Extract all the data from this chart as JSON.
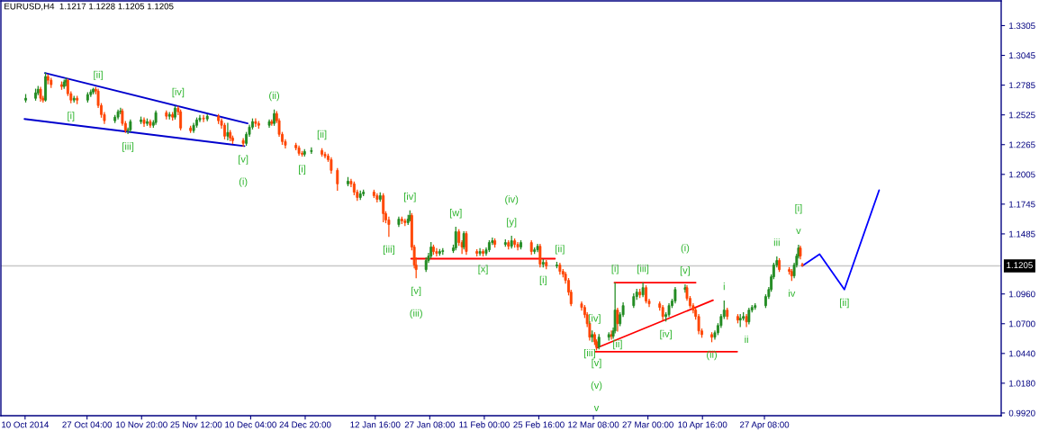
{
  "chart_data": {
    "type": "candlestick",
    "title": "EURUSD,H4  1.1217 1.1228 1.1205 1.1205",
    "x": [
      "2014-10-10T16:00",
      "2014-10-13T08:00",
      "2014-10-14T00:00",
      "2014-10-14T16:00",
      "2014-10-15T08:00",
      "2014-10-16T00:00",
      "2014-10-16T16:00",
      "2014-10-17T12:00",
      "2014-10-20T08:00",
      "2014-10-21T00:00",
      "2014-10-21T12:00",
      "2014-10-22T00:00",
      "2014-10-22T20:00",
      "2014-10-23T16:00",
      "2014-10-24T12:00",
      "2014-10-27T08:00",
      "2014-10-28T04:00",
      "2014-10-28T20:00",
      "2014-10-29T12:00",
      "2014-10-30T04:00",
      "2014-10-31T00:00",
      "2014-10-31T20:00",
      "2014-11-03T16:00",
      "2014-11-04T12:00",
      "2014-11-05T04:00",
      "2014-11-05T16:00",
      "2014-11-06T12:00",
      "2014-11-07T04:00",
      "2014-11-07T20:00",
      "2014-11-10T16:00",
      "2014-11-11T12:00",
      "2014-11-12T08:00",
      "2014-11-13T04:00",
      "2014-11-14T00:00",
      "2014-11-14T16:00",
      "2014-11-17T12:00",
      "2014-11-18T08:00",
      "2014-11-19T04:00",
      "2014-11-19T20:00",
      "2014-11-20T16:00",
      "2014-11-21T08:00",
      "2014-11-24T00:00",
      "2014-11-24T20:00",
      "2014-11-25T16:00",
      "2014-11-26T12:00",
      "2014-11-27T12:00",
      "2014-11-28T12:00",
      "2014-12-01T12:00",
      "2014-12-02T08:00",
      "2014-12-03T04:00",
      "2014-12-04T00:00",
      "2014-12-04T16:00",
      "2014-12-05T08:00",
      "2014-12-08T04:00",
      "2014-12-09T00:00",
      "2014-12-09T20:00",
      "2014-12-10T16:00",
      "2014-12-11T12:00",
      "2014-12-12T08:00",
      "2014-12-15T04:00",
      "2014-12-15T20:00",
      "2014-12-16T12:00",
      "2014-12-17T04:00",
      "2014-12-17T20:00",
      "2014-12-18T16:00",
      "2014-12-19T12:00",
      "2014-12-22T08:00",
      "2014-12-23T04:00",
      "2014-12-24T00:00",
      "2014-12-24T16:00",
      "2014-12-26T12:00",
      "2014-12-29T08:00",
      "2014-12-30T04:00",
      "2014-12-31T00:00",
      "2014-12-31T20:00",
      "2015-01-02T12:00",
      "2015-01-05T08:00",
      "2015-01-06T04:00",
      "2015-01-07T00:00",
      "2015-01-07T20:00",
      "2015-01-08T16:00",
      "2015-01-09T12:00",
      "2015-01-12T08:00",
      "2015-01-13T04:00",
      "2015-01-14T00:00",
      "2015-01-14T20:00",
      "2015-01-15T12:00",
      "2015-01-16T08:00",
      "2015-01-19T00:00",
      "2015-01-19T20:00",
      "2015-01-20T16:00",
      "2015-01-21T12:00",
      "2015-01-22T00:00",
      "2015-01-22T12:00",
      "2015-01-23T04:00",
      "2015-01-23T16:00",
      "2015-01-26T08:00",
      "2015-01-27T00:00",
      "2015-01-27T16:00",
      "2015-01-28T08:00",
      "2015-01-29T04:00",
      "2015-01-30T00:00",
      "2015-01-30T20:00",
      "2015-02-02T16:00",
      "2015-02-03T08:00",
      "2015-02-04T04:00",
      "2015-02-05T00:00",
      "2015-02-05T12:00",
      "2015-02-06T04:00",
      "2015-02-09T00:00",
      "2015-02-09T20:00",
      "2015-02-10T16:00",
      "2015-02-11T12:00",
      "2015-02-12T08:00",
      "2015-02-13T04:00",
      "2015-02-13T20:00",
      "2015-02-16T16:00",
      "2015-02-17T12:00",
      "2015-02-18T08:00",
      "2015-02-19T04:00",
      "2015-02-20T00:00",
      "2015-02-20T20:00",
      "2015-02-23T16:00",
      "2015-02-24T12:00",
      "2015-02-25T08:00",
      "2015-02-26T00:00",
      "2015-02-26T20:00",
      "2015-02-27T16:00",
      "2015-03-02T12:00",
      "2015-03-03T08:00",
      "2015-03-04T04:00",
      "2015-03-04T20:00",
      "2015-03-05T16:00",
      "2015-03-06T08:00",
      "2015-03-09T04:00",
      "2015-03-10T00:00",
      "2015-03-10T16:00",
      "2015-03-11T08:00",
      "2015-03-12T00:00",
      "2015-03-12T16:00",
      "2015-03-13T04:00",
      "2015-03-13T20:00",
      "2015-03-16T12:00",
      "2015-03-17T04:00",
      "2015-03-17T16:00",
      "2015-03-18T04:00",
      "2015-03-18T20:00",
      "2015-03-19T12:00",
      "2015-03-20T08:00",
      "2015-03-23T04:00",
      "2015-03-24T00:00",
      "2015-03-24T20:00",
      "2015-03-25T16:00",
      "2015-03-26T12:00",
      "2015-03-27T08:00",
      "2015-03-30T04:00",
      "2015-03-31T00:00",
      "2015-03-31T20:00",
      "2015-04-01T16:00",
      "2015-04-02T12:00",
      "2015-04-03T08:00",
      "2015-04-06T00:00",
      "2015-04-06T12:00",
      "2015-04-07T08:00",
      "2015-04-08T04:00",
      "2015-04-08T20:00",
      "2015-04-09T16:00",
      "2015-04-10T12:00",
      "2015-04-13T04:00",
      "2015-04-14T00:00",
      "2015-04-14T20:00",
      "2015-04-15T16:00",
      "2015-04-16T12:00",
      "2015-04-17T08:00",
      "2015-04-20T04:00",
      "2015-04-20T20:00",
      "2015-04-21T16:00",
      "2015-04-22T12:00",
      "2015-04-23T04:00",
      "2015-04-24T00:00",
      "2015-04-24T20:00",
      "2015-04-27T16:00",
      "2015-04-28T12:00",
      "2015-04-29T04:00",
      "2015-04-29T20:00",
      "2015-04-30T16:00",
      "2015-05-01T08:00",
      "2015-05-04T00:00",
      "2015-05-04T16:00",
      "2015-05-05T08:00",
      "2015-05-06T00:00",
      "2015-05-06T12:00",
      "2015-05-07T00:00",
      "2015-05-07T12:00"
    ],
    "ohlc": [
      [
        1.2654,
        1.2702,
        1.2638,
        1.267
      ],
      [
        1.267,
        1.2749,
        1.2654,
        1.2717
      ],
      [
        1.2717,
        1.2773,
        1.2702,
        1.2749
      ],
      [
        1.2749,
        1.2765,
        1.2646,
        1.267
      ],
      [
        1.267,
        1.2686,
        1.2638,
        1.2654
      ],
      [
        1.2654,
        1.2891,
        1.2646,
        1.286
      ],
      [
        1.286,
        1.2875,
        1.2796,
        1.2828
      ],
      [
        1.2828,
        1.2844,
        1.2765,
        1.2789
      ],
      [
        1.2789,
        1.2812,
        1.2749,
        1.2773
      ],
      [
        1.2773,
        1.2828,
        1.2757,
        1.2812
      ],
      [
        1.2812,
        1.2844,
        1.2781,
        1.2828
      ],
      [
        1.2828,
        1.2836,
        1.2694,
        1.271
      ],
      [
        1.271,
        1.2725,
        1.2631,
        1.2654
      ],
      [
        1.2654,
        1.2686,
        1.2638,
        1.267
      ],
      [
        1.267,
        1.2686,
        1.2623,
        1.2654
      ],
      [
        1.2654,
        1.2717,
        1.2638,
        1.2702
      ],
      [
        1.2702,
        1.2741,
        1.2686,
        1.2725
      ],
      [
        1.2725,
        1.2757,
        1.271,
        1.2749
      ],
      [
        1.2749,
        1.2765,
        1.271,
        1.2733
      ],
      [
        1.2733,
        1.2749,
        1.2591,
        1.2607
      ],
      [
        1.2607,
        1.2623,
        1.2505,
        1.2528
      ],
      [
        1.2528,
        1.2544,
        1.245,
        1.2474
      ],
      [
        1.2474,
        1.252,
        1.2458,
        1.2505
      ],
      [
        1.2505,
        1.2567,
        1.2489,
        1.2552
      ],
      [
        1.2552,
        1.2583,
        1.2536,
        1.2559
      ],
      [
        1.2559,
        1.2575,
        1.2434,
        1.245
      ],
      [
        1.245,
        1.2466,
        1.2371,
        1.2387
      ],
      [
        1.2387,
        1.241,
        1.2363,
        1.2395
      ],
      [
        1.2395,
        1.2481,
        1.2379,
        1.2466
      ],
      [
        1.2466,
        1.2505,
        1.245,
        1.2481
      ],
      [
        1.2481,
        1.2497,
        1.2426,
        1.245
      ],
      [
        1.245,
        1.2489,
        1.2434,
        1.2466
      ],
      [
        1.2466,
        1.2481,
        1.2418,
        1.2434
      ],
      [
        1.2434,
        1.2474,
        1.2418,
        1.2458
      ],
      [
        1.2458,
        1.2559,
        1.2442,
        1.2544
      ],
      [
        1.2544,
        1.2559,
        1.2489,
        1.2513
      ],
      [
        1.2513,
        1.2544,
        1.2489,
        1.2528
      ],
      [
        1.2528,
        1.2544,
        1.2481,
        1.2505
      ],
      [
        1.2505,
        1.2599,
        1.2489,
        1.2583
      ],
      [
        1.2583,
        1.2599,
        1.2528,
        1.2552
      ],
      [
        1.2552,
        1.2567,
        1.2395,
        1.241
      ],
      [
        1.241,
        1.2426,
        1.2371,
        1.2387
      ],
      [
        1.2387,
        1.245,
        1.2371,
        1.2434
      ],
      [
        1.2434,
        1.2497,
        1.2418,
        1.2481
      ],
      [
        1.2481,
        1.252,
        1.2466,
        1.2497
      ],
      [
        1.2497,
        1.252,
        1.2466,
        1.2489
      ],
      [
        1.2489,
        1.2528,
        1.2474,
        1.2513
      ],
      [
        1.2513,
        1.2528,
        1.245,
        1.2474
      ],
      [
        1.2474,
        1.2489,
        1.241,
        1.2434
      ],
      [
        1.2434,
        1.245,
        1.2316,
        1.2339
      ],
      [
        1.2339,
        1.245,
        1.2308,
        1.2371
      ],
      [
        1.2371,
        1.2387,
        1.23,
        1.2323
      ],
      [
        1.2323,
        1.2339,
        1.2276,
        1.23
      ],
      [
        1.23,
        1.2316,
        1.2252,
        1.2276
      ],
      [
        1.2276,
        1.2371,
        1.226,
        1.2355
      ],
      [
        1.2355,
        1.2434,
        1.2339,
        1.2418
      ],
      [
        1.2418,
        1.2489,
        1.2402,
        1.2466
      ],
      [
        1.2466,
        1.2489,
        1.2426,
        1.245
      ],
      [
        1.245,
        1.2466,
        1.241,
        1.2434
      ],
      [
        1.2434,
        1.2481,
        1.2418,
        1.2466
      ],
      [
        1.2466,
        1.2481,
        1.2434,
        1.245
      ],
      [
        1.245,
        1.2567,
        1.2434,
        1.2536
      ],
      [
        1.2536,
        1.2552,
        1.2458,
        1.2474
      ],
      [
        1.2474,
        1.2489,
        1.2339,
        1.2355
      ],
      [
        1.2355,
        1.2371,
        1.2268,
        1.2292
      ],
      [
        1.2292,
        1.2308,
        1.2237,
        1.226
      ],
      [
        1.226,
        1.2276,
        1.2221,
        1.2237
      ],
      [
        1.2237,
        1.2252,
        1.2173,
        1.2189
      ],
      [
        1.2189,
        1.2205,
        1.2165,
        1.2181
      ],
      [
        1.2181,
        1.2221,
        1.2165,
        1.2205
      ],
      [
        1.2205,
        1.2237,
        1.2189,
        1.2213
      ],
      [
        1.2213,
        1.2229,
        1.2165,
        1.2181
      ],
      [
        1.2181,
        1.2197,
        1.215,
        1.2165
      ],
      [
        1.2165,
        1.2181,
        1.2119,
        1.2134
      ],
      [
        1.2134,
        1.215,
        1.2016,
        1.204
      ],
      [
        1.204,
        1.2055,
        1.1866,
        1.1922
      ],
      [
        1.1922,
        1.1977,
        1.1906,
        1.1945
      ],
      [
        1.1945,
        1.1961,
        1.1898,
        1.1922
      ],
      [
        1.1922,
        1.1937,
        1.1827,
        1.185
      ],
      [
        1.185,
        1.1866,
        1.1779,
        1.1803
      ],
      [
        1.1803,
        1.1858,
        1.1787,
        1.1835
      ],
      [
        1.1835,
        1.1866,
        1.1819,
        1.185
      ],
      [
        1.185,
        1.1866,
        1.1803,
        1.1819
      ],
      [
        1.1819,
        1.1835,
        1.1764,
        1.1787
      ],
      [
        1.1787,
        1.1843,
        1.1771,
        1.1819
      ],
      [
        1.1819,
        1.1835,
        1.1591,
        1.1662
      ],
      [
        1.1662,
        1.1678,
        1.1583,
        1.1607
      ],
      [
        1.1607,
        1.163,
        1.1464,
        1.1567
      ],
      [
        1.1567,
        1.163,
        1.1551,
        1.1614
      ],
      [
        1.1614,
        1.163,
        1.1575,
        1.1599
      ],
      [
        1.1599,
        1.1614,
        1.1559,
        1.1583
      ],
      [
        1.1583,
        1.1646,
        1.1567,
        1.1614
      ],
      [
        1.1614,
        1.1685,
        1.1599,
        1.1646
      ],
      [
        1.1646,
        1.1662,
        1.1346,
        1.137
      ],
      [
        1.137,
        1.1386,
        1.1189,
        1.1213
      ],
      [
        1.1213,
        1.1275,
        1.1102,
        1.1173
      ],
      [
        1.1173,
        1.1275,
        1.1157,
        1.1252
      ],
      [
        1.1252,
        1.1315,
        1.1236,
        1.1291
      ],
      [
        1.1291,
        1.1409,
        1.1276,
        1.137
      ],
      [
        1.137,
        1.1386,
        1.1307,
        1.1331
      ],
      [
        1.1331,
        1.1355,
        1.1292,
        1.1315
      ],
      [
        1.1315,
        1.1347,
        1.1299,
        1.1331
      ],
      [
        1.1331,
        1.1355,
        1.1307,
        1.1338
      ],
      [
        1.1338,
        1.1386,
        1.1323,
        1.1362
      ],
      [
        1.1362,
        1.1543,
        1.1346,
        1.1504
      ],
      [
        1.1504,
        1.152,
        1.1386,
        1.1409
      ],
      [
        1.1409,
        1.1425,
        1.1315,
        1.137
      ],
      [
        1.137,
        1.1504,
        1.1354,
        1.1488
      ],
      [
        1.1488,
        1.1504,
        1.1307,
        1.1331
      ],
      [
        1.1331,
        1.1346,
        1.1292,
        1.1315
      ],
      [
        1.1315,
        1.1355,
        1.1299,
        1.1331
      ],
      [
        1.1331,
        1.1346,
        1.1292,
        1.1315
      ],
      [
        1.1315,
        1.1362,
        1.1299,
        1.1346
      ],
      [
        1.1346,
        1.1425,
        1.1331,
        1.1409
      ],
      [
        1.1409,
        1.1449,
        1.1393,
        1.1425
      ],
      [
        1.1425,
        1.1441,
        1.137,
        1.1393
      ],
      [
        1.1393,
        1.1433,
        1.1377,
        1.1409
      ],
      [
        1.1409,
        1.1425,
        1.1354,
        1.1377
      ],
      [
        1.1377,
        1.1464,
        1.1362,
        1.1425
      ],
      [
        1.1425,
        1.1441,
        1.137,
        1.1393
      ],
      [
        1.1393,
        1.1409,
        1.1346,
        1.137
      ],
      [
        1.137,
        1.1425,
        1.1354,
        1.1409
      ],
      [
        1.1409,
        1.1425,
        1.1307,
        1.1331
      ],
      [
        1.1331,
        1.1362,
        1.1315,
        1.1346
      ],
      [
        1.1346,
        1.1393,
        1.1331,
        1.1377
      ],
      [
        1.1377,
        1.1393,
        1.1197,
        1.122
      ],
      [
        1.122,
        1.126,
        1.1197,
        1.1236
      ],
      [
        1.1236,
        1.1252,
        1.1181,
        1.1205
      ],
      [
        1.1205,
        1.1236,
        1.1189,
        1.1213
      ],
      [
        1.1213,
        1.1228,
        1.1134,
        1.1157
      ],
      [
        1.1157,
        1.1173,
        1.111,
        1.1134
      ],
      [
        1.1134,
        1.1149,
        1.1055,
        1.1078
      ],
      [
        1.1078,
        1.1094,
        1.0952,
        1.0976
      ],
      [
        1.0976,
        1.0991,
        1.0858,
        1.0874
      ],
      [
        1.0874,
        1.089,
        1.0819,
        1.0842
      ],
      [
        1.0842,
        1.0858,
        1.0755,
        1.0779
      ],
      [
        1.0779,
        1.0795,
        1.0676,
        1.07
      ],
      [
        1.07,
        1.0716,
        1.0558,
        1.0582
      ],
      [
        1.0582,
        1.0637,
        1.0543,
        1.0605
      ],
      [
        1.0605,
        1.0621,
        1.0519,
        1.0543
      ],
      [
        1.0543,
        1.0558,
        1.0472,
        1.0496
      ],
      [
        1.0496,
        1.0605,
        1.048,
        1.0582
      ],
      [
        1.0582,
        1.0621,
        1.0558,
        1.0605
      ],
      [
        1.0605,
        1.0637,
        1.0566,
        1.059
      ],
      [
        1.059,
        1.0661,
        1.0574,
        1.0637
      ],
      [
        1.0637,
        1.1055,
        1.0621,
        1.0819
      ],
      [
        1.0819,
        1.0834,
        1.0637,
        1.07
      ],
      [
        1.07,
        1.0795,
        1.0684,
        1.0779
      ],
      [
        1.0779,
        1.0882,
        1.0763,
        1.0858
      ],
      [
        1.0858,
        1.0961,
        1.0842,
        1.0937
      ],
      [
        1.0937,
        1.0999,
        1.0913,
        1.0976
      ],
      [
        1.0976,
        1.0999,
        1.0929,
        1.0952
      ],
      [
        1.0952,
        1.1055,
        1.0937,
        1.1015
      ],
      [
        1.1015,
        1.1031,
        1.0882,
        1.0898
      ],
      [
        1.0898,
        1.0913,
        1.085,
        1.0874
      ],
      [
        1.0874,
        1.089,
        1.0819,
        1.0842
      ],
      [
        1.0842,
        1.0858,
        1.0732,
        1.0763
      ],
      [
        1.0763,
        1.0795,
        1.0724,
        1.0779
      ],
      [
        1.0779,
        1.0874,
        1.0763,
        1.0858
      ],
      [
        1.0858,
        1.0913,
        1.0842,
        1.0898
      ],
      [
        1.0898,
        1.1015,
        1.0882,
        1.0999
      ],
      [
        1.0999,
        1.1039,
        1.0976,
        1.1015
      ],
      [
        1.1015,
        1.1031,
        1.0905,
        1.0921
      ],
      [
        1.0921,
        1.0937,
        1.0842,
        1.0858
      ],
      [
        1.0858,
        1.0874,
        1.0795,
        1.0819
      ],
      [
        1.0819,
        1.0834,
        1.074,
        1.0763
      ],
      [
        1.0763,
        1.0779,
        1.0613,
        1.0637
      ],
      [
        1.0637,
        1.0653,
        1.0582,
        1.0605
      ],
      [
        1.0605,
        1.0621,
        1.0543,
        1.0582
      ],
      [
        1.0582,
        1.0637,
        1.0566,
        1.0621
      ],
      [
        1.0621,
        1.07,
        1.0605,
        1.0684
      ],
      [
        1.0684,
        1.0779,
        1.0668,
        1.0763
      ],
      [
        1.0763,
        1.0898,
        1.0747,
        1.0819
      ],
      [
        1.0819,
        1.0834,
        1.074,
        1.0763
      ],
      [
        1.0763,
        1.0779,
        1.0708,
        1.0732
      ],
      [
        1.0732,
        1.0779,
        1.0676,
        1.0747
      ],
      [
        1.0747,
        1.0795,
        1.0732,
        1.0763
      ],
      [
        1.0763,
        1.0779,
        1.0676,
        1.0716
      ],
      [
        1.0716,
        1.0834,
        1.07,
        1.0819
      ],
      [
        1.0819,
        1.0858,
        1.0803,
        1.0842
      ],
      [
        1.0842,
        1.0874,
        1.0827,
        1.0858
      ],
      [
        1.0858,
        1.0952,
        1.0842,
        1.0937
      ],
      [
        1.0937,
        1.1015,
        1.0921,
        1.0999
      ],
      [
        1.0999,
        1.1126,
        1.0984,
        1.111
      ],
      [
        1.111,
        1.1228,
        1.1094,
        1.1213
      ],
      [
        1.1213,
        1.1283,
        1.1197,
        1.1252
      ],
      [
        1.1252,
        1.1268,
        1.1157,
        1.1173
      ],
      [
        1.1173,
        1.1189,
        1.1134,
        1.1157
      ],
      [
        1.1157,
        1.1173,
        1.1078,
        1.1118
      ],
      [
        1.1118,
        1.1228,
        1.1102,
        1.1213
      ],
      [
        1.1213,
        1.1307,
        1.1197,
        1.1291
      ],
      [
        1.1291,
        1.1386,
        1.1276,
        1.1362
      ],
      [
        1.1362,
        1.1377,
        1.1268,
        1.1291
      ],
      [
        1.1217,
        1.1228,
        1.1205,
        1.1205
      ]
    ],
    "colors": [
      "#228b22",
      "#228b22",
      "#228b22",
      "#ff4500",
      "#ff4500",
      "#228b22",
      "#ff4500",
      "#ff4500",
      "#ff4500",
      "#228b22",
      "#228b22",
      "#ff4500",
      "#ff4500",
      "#228b22",
      "#ff4500",
      "#228b22",
      "#228b22",
      "#228b22",
      "#ff4500",
      "#ff4500",
      "#ff4500",
      "#ff4500",
      "#228b22",
      "#228b22",
      "#228b22",
      "#ff4500",
      "#ff4500",
      "#228b22",
      "#228b22",
      "#228b22",
      "#ff4500",
      "#228b22",
      "#ff4500",
      "#228b22",
      "#228b22",
      "#ff4500",
      "#228b22",
      "#ff4500",
      "#228b22",
      "#ff4500",
      "#ff4500",
      "#ff4500",
      "#228b22",
      "#228b22",
      "#228b22",
      "#ff4500",
      "#228b22",
      "#ff4500",
      "#ff4500",
      "#ff4500",
      "#228b22",
      "#ff4500",
      "#ff4500",
      "#ff4500",
      "#228b22",
      "#228b22",
      "#228b22",
      "#ff4500",
      "#ff4500",
      "#228b22",
      "#ff4500",
      "#228b22",
      "#ff4500",
      "#ff4500",
      "#ff4500",
      "#ff4500",
      "#ff4500",
      "#ff4500",
      "#ff4500",
      "#228b22",
      "#228b22",
      "#ff4500",
      "#ff4500",
      "#ff4500",
      "#ff4500",
      "#ff4500",
      "#228b22",
      "#ff4500",
      "#ff4500",
      "#ff4500",
      "#228b22",
      "#228b22",
      "#ff4500",
      "#ff4500",
      "#228b22",
      "#ff4500",
      "#ff4500",
      "#ff4500",
      "#228b22",
      "#ff4500",
      "#ff4500",
      "#228b22",
      "#228b22",
      "#ff4500",
      "#ff4500",
      "#ff4500",
      "#228b22",
      "#228b22",
      "#228b22",
      "#ff4500",
      "#ff4500",
      "#228b22",
      "#228b22",
      "#228b22",
      "#228b22",
      "#ff4500",
      "#ff4500",
      "#228b22",
      "#ff4500",
      "#ff4500",
      "#228b22",
      "#ff4500",
      "#228b22",
      "#228b22",
      "#228b22",
      "#ff4500",
      "#228b22",
      "#ff4500",
      "#228b22",
      "#ff4500",
      "#ff4500",
      "#228b22",
      "#ff4500",
      "#228b22",
      "#228b22",
      "#ff4500",
      "#228b22",
      "#ff4500",
      "#228b22",
      "#ff4500",
      "#ff4500",
      "#ff4500",
      "#ff4500",
      "#ff4500",
      "#ff4500",
      "#ff4500",
      "#ff4500",
      "#ff4500",
      "#228b22",
      "#ff4500",
      "#ff4500",
      "#228b22",
      "#228b22",
      "#ff4500",
      "#228b22",
      "#228b22",
      "#ff4500",
      "#228b22",
      "#228b22",
      "#228b22",
      "#228b22",
      "#ff4500",
      "#228b22",
      "#ff4500",
      "#ff4500",
      "#ff4500",
      "#ff4500",
      "#228b22",
      "#228b22",
      "#228b22",
      "#228b22",
      "#228b22",
      "#ff4500",
      "#ff4500",
      "#ff4500",
      "#ff4500",
      "#ff4500",
      "#ff4500",
      "#ff4500",
      "#228b22",
      "#228b22",
      "#228b22",
      "#228b22",
      "#ff4500",
      "#ff4500",
      "#228b22",
      "#228b22",
      "#ff4500",
      "#228b22",
      "#228b22",
      "#228b22",
      "#228b22",
      "#228b22",
      "#228b22",
      "#228b22",
      "#228b22",
      "#ff4500",
      "#ff4500",
      "#ff4500",
      "#228b22",
      "#228b22",
      "#228b22",
      "#ff4500",
      "#ff4500"
    ],
    "series": [
      {
        "type": "line",
        "color": "#0000cd",
        "x": [
          "2014-10-15T20:00",
          "2014-12-09T08:00"
        ],
        "values": [
          1.2891,
          1.245
        ]
      },
      {
        "type": "line",
        "color": "#0000cd",
        "x": [
          "2014-10-10T08:00",
          "2014-12-08T12:00"
        ],
        "values": [
          1.2489,
          1.2252
        ]
      },
      {
        "type": "line",
        "color": "#ff0000",
        "x": [
          "2015-01-22T08:00",
          "2015-03-02T00:00"
        ],
        "values": [
          1.1268,
          1.1268
        ]
      },
      {
        "type": "line",
        "color": "#ff0000",
        "x": [
          "2015-03-18T00:00",
          "2015-04-08T20:00"
        ],
        "values": [
          1.1059,
          1.1059
        ]
      },
      {
        "type": "line",
        "color": "#ff0000",
        "x": [
          "2015-03-13T04:00",
          "2015-04-13T12:00"
        ],
        "values": [
          1.0488,
          1.0905
        ]
      },
      {
        "type": "line",
        "color": "#ff0000",
        "x": [
          "2015-03-12T20:00",
          "2015-04-20T00:00"
        ],
        "values": [
          1.0456,
          1.0456
        ]
      },
      {
        "type": "line",
        "color": "#0000ff",
        "x": [
          "2015-05-07T12:00",
          "2015-05-12T04:00",
          "2015-05-18T20:00",
          "2015-05-28T04:00"
        ],
        "values": [
          1.1205,
          1.1307,
          1.0999,
          1.1866
        ]
      }
    ],
    "xlim": [
      "2014-10-04",
      "2015-06-30"
    ],
    "ylim": [
      0.9896,
      1.3521
    ],
    "xticks": [
      {
        "value": "2014-10-10T12:00",
        "label": "10 Oct 2014"
      },
      {
        "value": "2014-10-27T04:00",
        "label": "27 Oct 04:00"
      },
      {
        "value": "2014-11-10T20:00",
        "label": "10 Nov 20:00"
      },
      {
        "value": "2014-11-25T12:00",
        "label": "25 Nov 12:00"
      },
      {
        "value": "2014-12-10T04:00",
        "label": "10 Dec 04:00"
      },
      {
        "value": "2014-12-24T20:00",
        "label": "24 Dec 20:00"
      },
      {
        "value": "2015-01-12T16:00",
        "label": "12 Jan 16:00"
      },
      {
        "value": "2015-01-27T08:00",
        "label": "27 Jan 08:00"
      },
      {
        "value": "2015-02-11T00:00",
        "label": "11 Feb 00:00"
      },
      {
        "value": "2015-02-25T16:00",
        "label": "25 Feb 16:00"
      },
      {
        "value": "2015-03-12T08:00",
        "label": "12 Mar 08:00"
      },
      {
        "value": "2015-03-27T00:00",
        "label": "27 Mar 00:00"
      },
      {
        "value": "2015-04-10T16:00",
        "label": "10 Apr 16:00"
      },
      {
        "value": "2015-04-27T08:00",
        "label": "27 Apr 08:00"
      }
    ],
    "yticks": [
      1.3305,
      1.3045,
      1.2785,
      1.2525,
      1.2265,
      1.2005,
      1.1745,
      1.1485,
      {
        "value": 1.096,
        "label": "1.0960"
      },
      {
        "value": 1.07,
        "label": "1.0700"
      },
      {
        "value": 1.044,
        "label": "1.0440"
      },
      {
        "value": 1.018,
        "label": "1.0180"
      },
      {
        "value": 0.992,
        "label": "0.9920"
      }
    ],
    "ref_lines": [
      {
        "axis": "y",
        "value": 1.1205,
        "label": "1.1205",
        "color": "#c8c8c8"
      }
    ],
    "annotations": [
      {
        "text": "[ii]",
        "x": "2014-10-30T04:00",
        "y": 1.2749
      },
      {
        "text": "[i]",
        "x": "2014-10-22T20:00",
        "y": 1.2631
      },
      {
        "text": "[iv]",
        "x": "2014-11-20T16:00",
        "y": 1.2599
      },
      {
        "text": "[iii]",
        "x": "2014-11-07T04:00",
        "y": 1.2363
      },
      {
        "text": "[v]",
        "x": "2014-12-08T04:00",
        "y": 1.2252
      },
      "(i)",
      {
        "text": "(ii)",
        "x": "2014-12-16T12:00",
        "y": 1.2567
      },
      {
        "text": "[ii]",
        "x": "2014-12-29T08:00",
        "y": 1.2229
      },
      {
        "text": "[i]",
        "x": "2014-12-24T00:00",
        "y": 1.2165
      },
      {
        "text": "[iv]",
        "x": "2015-01-22T00:00",
        "y": 1.1685
      },
      {
        "text": "[iii]",
        "x": "2015-01-16T08:00",
        "y": 1.1464
      },
      {
        "text": "[w]",
        "x": "2015-02-03T08:00",
        "y": 1.1543
      },
      {
        "text": "[y]",
        "x": "2015-02-18T08:00",
        "y": 1.1464
      },
      "(iv)",
      {
        "text": "[x]",
        "x": "2015-02-10T16:00",
        "y": 1.1292
      },
      {
        "text": "[v]",
        "x": "2015-01-23T16:00",
        "y": 1.1102
      },
      "(iii)",
      {
        "text": "[ii]",
        "x": "2015-03-03T08:00",
        "y": 1.1228
      },
      {
        "text": "[i]",
        "x": "2015-02-26T20:00",
        "y": 1.1197
      },
      {
        "text": "[i]",
        "x": "2015-03-18T04:00",
        "y": 1.1055
      },
      {
        "text": "[iii]",
        "x": "2015-03-25T16:00",
        "y": 1.1055
      },
      {
        "text": "[v]",
        "x": "2015-04-06T00:00",
        "y": 1.1039
      },
      "(i)",
      {
        "text": "[iv]",
        "x": "2015-03-12T16:00",
        "y": 1.0621
      },
      {
        "text": "[ii]",
        "x": "2015-03-18T20:00",
        "y": 1.0637
      },
      {
        "text": "[iv]",
        "x": "2015-03-31T20:00",
        "y": 1.0724
      },
      {
        "text": "[iii]",
        "x": "2015-03-11T08:00",
        "y": 1.0558
      },
      {
        "text": "[v]",
        "x": "2015-03-13T04:00",
        "y": 1.0472
      },
      "(v)",
      "v",
      {
        "text": "(ii)",
        "x": "2015-04-13T04:00",
        "y": 1.0543
      },
      {
        "text": "i",
        "x": "2015-04-16T12:00",
        "y": 1.0898
      },
      {
        "text": "ii",
        "x": "2015-04-22T12:00",
        "y": 1.0676
      },
      {
        "text": "iii",
        "x": "2015-04-30T16:00",
        "y": 1.1283
      },
      {
        "text": "iv",
        "x": "2015-05-04T16:00",
        "y": 1.1078
      },
      {
        "text": "v",
        "x": "2015-05-06T12:00",
        "y": 1.1386
      },
      "[i]",
      {
        "text": "[ii]",
        "x": "2015-05-18T20:00",
        "y": 1.0999
      }
    ],
    "grid": false
  }
}
